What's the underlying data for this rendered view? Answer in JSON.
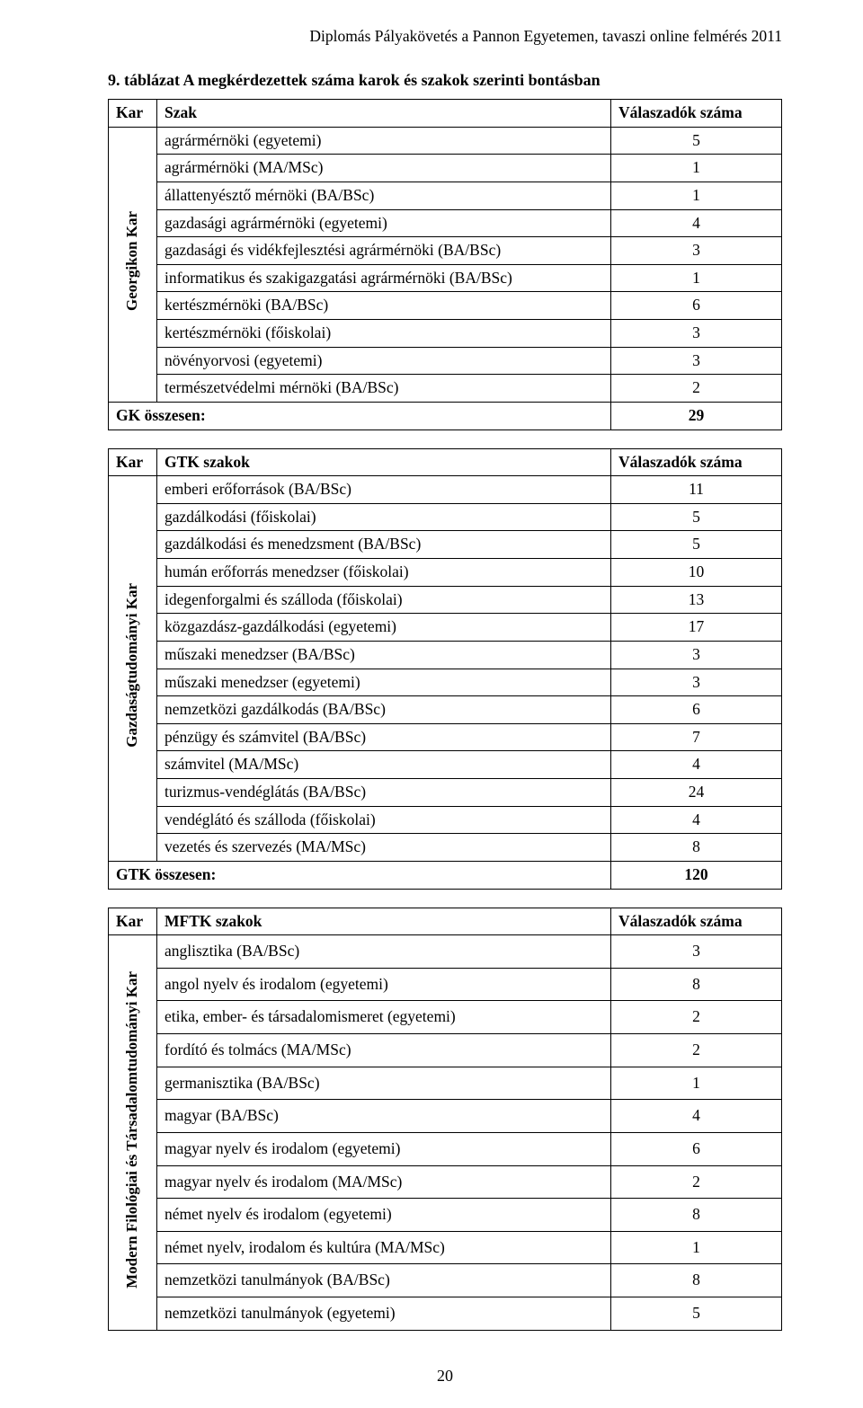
{
  "header": "Diplomás Pályakövetés a Pannon Egyetemen, tavaszi online felmérés 2011",
  "caption": "9. táblázat A megkérdezettek száma karok és szakok szerinti bontásban",
  "table1": {
    "h1": "Kar",
    "h2": "Szak",
    "h3": "Válaszadók száma",
    "faculty": "Georgikon Kar",
    "rows": [
      {
        "label": "agrármérnöki (egyetemi)",
        "value": "5"
      },
      {
        "label": "agrármérnöki (MA/MSc)",
        "value": "1"
      },
      {
        "label": "állattenyésztő mérnöki (BA/BSc)",
        "value": "1"
      },
      {
        "label": "gazdasági agrármérnöki (egyetemi)",
        "value": "4"
      },
      {
        "label": "gazdasági és vidékfejlesztési agrármérnöki (BA/BSc)",
        "value": "3"
      },
      {
        "label": "informatikus és szakigazgatási agrármérnöki (BA/BSc)",
        "value": "1"
      },
      {
        "label": "kertészmérnöki (BA/BSc)",
        "value": "6"
      },
      {
        "label": "kertészmérnöki (főiskolai)",
        "value": "3"
      },
      {
        "label": "növényorvosi (egyetemi)",
        "value": "3"
      },
      {
        "label": "természetvédelmi mérnöki (BA/BSc)",
        "value": "2"
      }
    ],
    "total_label": "GK összesen:",
    "total_value": "29"
  },
  "table2": {
    "h1": "Kar",
    "h2": "GTK szakok",
    "h3": "Válaszadók száma",
    "faculty": "Gazdaságtudományi Kar",
    "rows": [
      {
        "label": "emberi erőforrások (BA/BSc)",
        "value": "11"
      },
      {
        "label": "gazdálkodási (főiskolai)",
        "value": "5"
      },
      {
        "label": "gazdálkodási és menedzsment (BA/BSc)",
        "value": "5"
      },
      {
        "label": "humán erőforrás menedzser (főiskolai)",
        "value": "10"
      },
      {
        "label": "idegenforgalmi és szálloda (főiskolai)",
        "value": "13"
      },
      {
        "label": "közgazdász-gazdálkodási (egyetemi)",
        "value": "17"
      },
      {
        "label": "műszaki menedzser (BA/BSc)",
        "value": "3"
      },
      {
        "label": "műszaki menedzser (egyetemi)",
        "value": "3"
      },
      {
        "label": "nemzetközi gazdálkodás (BA/BSc)",
        "value": "6"
      },
      {
        "label": "pénzügy és számvitel (BA/BSc)",
        "value": "7"
      },
      {
        "label": "számvitel (MA/MSc)",
        "value": "4"
      },
      {
        "label": "turizmus-vendéglátás (BA/BSc)",
        "value": "24"
      },
      {
        "label": "vendéglátó és szálloda (főiskolai)",
        "value": "4"
      },
      {
        "label": "vezetés és szervezés (MA/MSc)",
        "value": "8"
      }
    ],
    "total_label": "GTK összesen:",
    "total_value": "120"
  },
  "table3": {
    "h1": "Kar",
    "h2": "MFTK szakok",
    "h3": "Válaszadók száma",
    "faculty": "Modern Filológiai és Társadalomtudományi Kar",
    "rows": [
      {
        "label": "anglisztika (BA/BSc)",
        "value": "3"
      },
      {
        "label": "angol nyelv és irodalom (egyetemi)",
        "value": "8"
      },
      {
        "label": "etika, ember- és társadalomismeret (egyetemi)",
        "value": "2"
      },
      {
        "label": "fordító és tolmács (MA/MSc)",
        "value": "2"
      },
      {
        "label": "germanisztika (BA/BSc)",
        "value": "1"
      },
      {
        "label": "magyar (BA/BSc)",
        "value": "4"
      },
      {
        "label": "magyar nyelv és irodalom (egyetemi)",
        "value": "6"
      },
      {
        "label": "magyar nyelv és irodalom (MA/MSc)",
        "value": "2"
      },
      {
        "label": "német nyelv és irodalom (egyetemi)",
        "value": "8"
      },
      {
        "label": "német nyelv, irodalom és kultúra (MA/MSc)",
        "value": "1"
      },
      {
        "label": "nemzetközi tanulmányok (BA/BSc)",
        "value": "8"
      },
      {
        "label": "nemzetközi tanulmányok (egyetemi)",
        "value": "5"
      }
    ]
  },
  "page_number": "20"
}
